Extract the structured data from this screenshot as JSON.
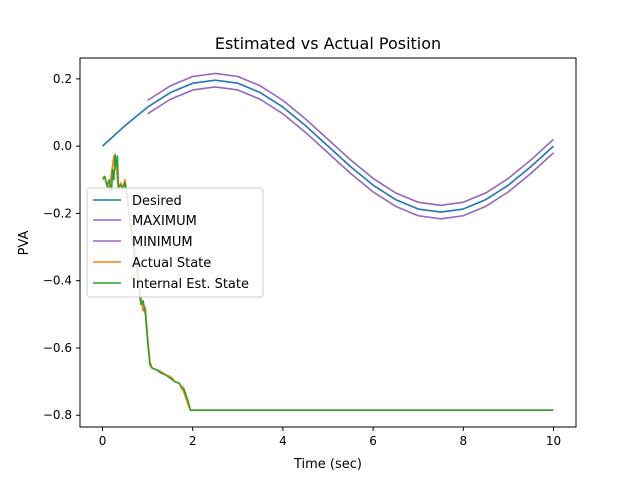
{
  "chart_data": {
    "type": "line",
    "title": "Estimated vs Actual Position",
    "xlabel": "Time (sec)",
    "ylabel": "PVA",
    "xlim": [
      -0.5,
      10.5
    ],
    "ylim": [
      -0.835,
      0.262
    ],
    "xticks": [
      0,
      2,
      4,
      6,
      8,
      10
    ],
    "xtick_labels": [
      "0",
      "2",
      "4",
      "6",
      "8",
      "10"
    ],
    "yticks": [
      0.2,
      0.0,
      -0.2,
      -0.4,
      -0.6,
      -0.8
    ],
    "ytick_labels": [
      "0.2",
      "0.0",
      "−0.2",
      "−0.4",
      "−0.6",
      "−0.8"
    ],
    "grid": false,
    "legend_position": "center-left",
    "series": [
      {
        "name": "Desired",
        "color": "#1f77b4",
        "x": [
          0,
          0.5,
          1,
          1.5,
          2,
          2.5,
          3,
          3.5,
          4,
          4.5,
          5,
          5.5,
          6,
          6.5,
          7,
          7.5,
          8,
          8.5,
          9,
          9.5,
          10
        ],
        "y": [
          0.0,
          0.061,
          0.116,
          0.159,
          0.187,
          0.196,
          0.187,
          0.159,
          0.116,
          0.061,
          0.0,
          -0.061,
          -0.116,
          -0.159,
          -0.187,
          -0.196,
          -0.187,
          -0.159,
          -0.116,
          -0.061,
          0.0
        ]
      },
      {
        "name": "MAXIMUM",
        "color": "#9467bd",
        "x": [
          1,
          1.5,
          2,
          2.5,
          3,
          3.5,
          4,
          4.5,
          5,
          5.5,
          6,
          6.5,
          7,
          7.5,
          8,
          8.5,
          9,
          9.5,
          10
        ],
        "y": [
          0.136,
          0.179,
          0.207,
          0.216,
          0.207,
          0.179,
          0.136,
          0.081,
          0.02,
          -0.041,
          -0.096,
          -0.139,
          -0.167,
          -0.176,
          -0.167,
          -0.139,
          -0.096,
          -0.041,
          0.02
        ]
      },
      {
        "name": "MINIMUM",
        "color": "#9467bd",
        "x": [
          1,
          1.5,
          2,
          2.5,
          3,
          3.5,
          4,
          4.5,
          5,
          5.5,
          6,
          6.5,
          7,
          7.5,
          8,
          8.5,
          9,
          9.5,
          10
        ],
        "y": [
          0.096,
          0.139,
          0.167,
          0.176,
          0.167,
          0.139,
          0.096,
          0.041,
          -0.02,
          -0.081,
          -0.136,
          -0.179,
          -0.207,
          -0.216,
          -0.207,
          -0.179,
          -0.136,
          -0.081,
          -0.02
        ]
      },
      {
        "name": "Actual State",
        "color": "#ff7f0e",
        "x": [
          0,
          0.05,
          0.1,
          0.15,
          0.2,
          0.25,
          0.28,
          0.3,
          0.35,
          0.4,
          0.45,
          0.5,
          0.55,
          0.6,
          0.65,
          0.7,
          0.75,
          0.8,
          0.85,
          0.9,
          0.95,
          1.0,
          1.05,
          1.1,
          1.2,
          1.3,
          1.4,
          1.5,
          1.55,
          1.6,
          1.7,
          1.75,
          1.8,
          1.85,
          1.9,
          1.95,
          2.0,
          3,
          4,
          5,
          6,
          7,
          8,
          9,
          10
        ],
        "y": [
          -0.1,
          -0.095,
          -0.11,
          -0.13,
          -0.08,
          -0.03,
          -0.07,
          -0.05,
          -0.13,
          -0.11,
          -0.12,
          -0.1,
          -0.16,
          -0.2,
          -0.28,
          -0.3,
          -0.33,
          -0.38,
          -0.45,
          -0.49,
          -0.48,
          -0.57,
          -0.64,
          -0.66,
          -0.665,
          -0.67,
          -0.68,
          -0.685,
          -0.69,
          -0.7,
          -0.705,
          -0.72,
          -0.73,
          -0.75,
          -0.77,
          -0.785,
          -0.785,
          -0.785,
          -0.785,
          -0.785,
          -0.785,
          -0.785,
          -0.785,
          -0.785,
          -0.785
        ]
      },
      {
        "name": "Internal Est. State",
        "color": "#2ca02c",
        "x": [
          0,
          0.05,
          0.1,
          0.15,
          0.2,
          0.22,
          0.25,
          0.28,
          0.3,
          0.33,
          0.35,
          0.4,
          0.45,
          0.5,
          0.55,
          0.6,
          0.65,
          0.7,
          0.75,
          0.8,
          0.85,
          0.9,
          0.95,
          1.0,
          1.05,
          1.1,
          1.2,
          1.3,
          1.4,
          1.5,
          1.55,
          1.6,
          1.7,
          1.75,
          1.8,
          1.85,
          1.9,
          1.95,
          2.0,
          3,
          4,
          5,
          6,
          7,
          8,
          9,
          10
        ],
        "y": [
          -0.095,
          -0.09,
          -0.12,
          -0.1,
          -0.14,
          -0.07,
          -0.1,
          -0.025,
          -0.06,
          -0.03,
          -0.12,
          -0.115,
          -0.13,
          -0.11,
          -0.15,
          -0.22,
          -0.25,
          -0.32,
          -0.35,
          -0.42,
          -0.47,
          -0.46,
          -0.5,
          -0.58,
          -0.65,
          -0.66,
          -0.665,
          -0.675,
          -0.68,
          -0.69,
          -0.695,
          -0.7,
          -0.705,
          -0.715,
          -0.72,
          -0.74,
          -0.76,
          -0.785,
          -0.785,
          -0.785,
          -0.785,
          -0.785,
          -0.785,
          -0.785,
          -0.785,
          -0.785,
          -0.785
        ]
      }
    ]
  }
}
